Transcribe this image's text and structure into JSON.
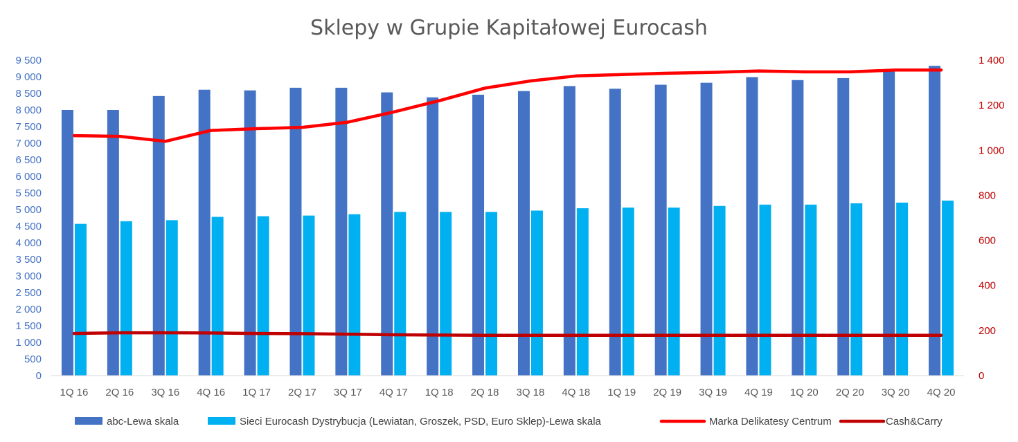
{
  "chart_data": {
    "type": "bar",
    "title": "Sklepy w Grupie Kapitałowej Eurocash",
    "categories": [
      "1Q 16",
      "2Q 16",
      "3Q 16",
      "4Q 16",
      "1Q 17",
      "2Q 17",
      "3Q 17",
      "4Q 17",
      "1Q 18",
      "2Q 18",
      "3Q 18",
      "4Q 18",
      "1Q 19",
      "2Q 19",
      "3Q 19",
      "4Q 19",
      "1Q 20",
      "2Q 20",
      "3Q 20",
      "4Q 20"
    ],
    "y_left": {
      "range": [
        0,
        9500
      ],
      "ticks": [
        0,
        500,
        1000,
        1500,
        2000,
        2500,
        3000,
        3500,
        4000,
        4500,
        5000,
        5500,
        6000,
        6500,
        7000,
        7500,
        8000,
        8500,
        9000,
        9500
      ],
      "tick_labels": [
        "0",
        "500",
        "1 000",
        "1 500",
        "2 000",
        "2 500",
        "3 000",
        "3 500",
        "4 000",
        "4 500",
        "5 000",
        "5 500",
        "6 000",
        "6 500",
        "7 000",
        "7 500",
        "8 000",
        "8 500",
        "9 000",
        "9 500"
      ],
      "color": "#4472C4"
    },
    "y_right": {
      "range": [
        0,
        1400
      ],
      "ticks": [
        0,
        200,
        400,
        600,
        800,
        1000,
        1200,
        1400
      ],
      "tick_labels": [
        "0",
        "200",
        "400",
        "600",
        "800",
        "1 000",
        "1 200",
        "1 400"
      ],
      "color": "#C00000"
    },
    "series": [
      {
        "name": "abc-Lewa skala",
        "kind": "bar",
        "axis": "left",
        "color": "#4472C4",
        "values": [
          8000,
          8000,
          8420,
          8610,
          8590,
          8670,
          8670,
          8530,
          8380,
          8460,
          8570,
          8720,
          8640,
          8760,
          8820,
          8990,
          8900,
          8960,
          9170,
          9330
        ]
      },
      {
        "name": "Sieci Eurocash Dystrybucja (Lewiatan, Groszek, PSD, Euro Sklep)-Lewa skala",
        "kind": "bar",
        "axis": "left",
        "color": "#00B0F0",
        "values": [
          4570,
          4650,
          4680,
          4780,
          4800,
          4820,
          4860,
          4930,
          4930,
          4930,
          4970,
          5040,
          5060,
          5060,
          5110,
          5150,
          5150,
          5190,
          5210,
          5270
        ]
      },
      {
        "name": "Marka Delikatesy Centrum",
        "kind": "line",
        "axis": "right",
        "color": "#FF0000",
        "values": [
          1065,
          1062,
          1040,
          1088,
          1096,
          1102,
          1125,
          1170,
          1220,
          1276,
          1308,
          1330,
          1336,
          1342,
          1346,
          1352,
          1348,
          1348,
          1356,
          1356
        ]
      },
      {
        "name": "Cash&Carry",
        "kind": "line",
        "axis": "right",
        "color": "#C00000",
        "values": [
          187,
          190,
          190,
          189,
          187,
          186,
          184,
          181,
          180,
          179,
          179,
          179,
          179,
          179,
          179,
          179,
          179,
          179,
          179,
          179
        ]
      }
    ],
    "grid": false,
    "legend": "bottom"
  }
}
